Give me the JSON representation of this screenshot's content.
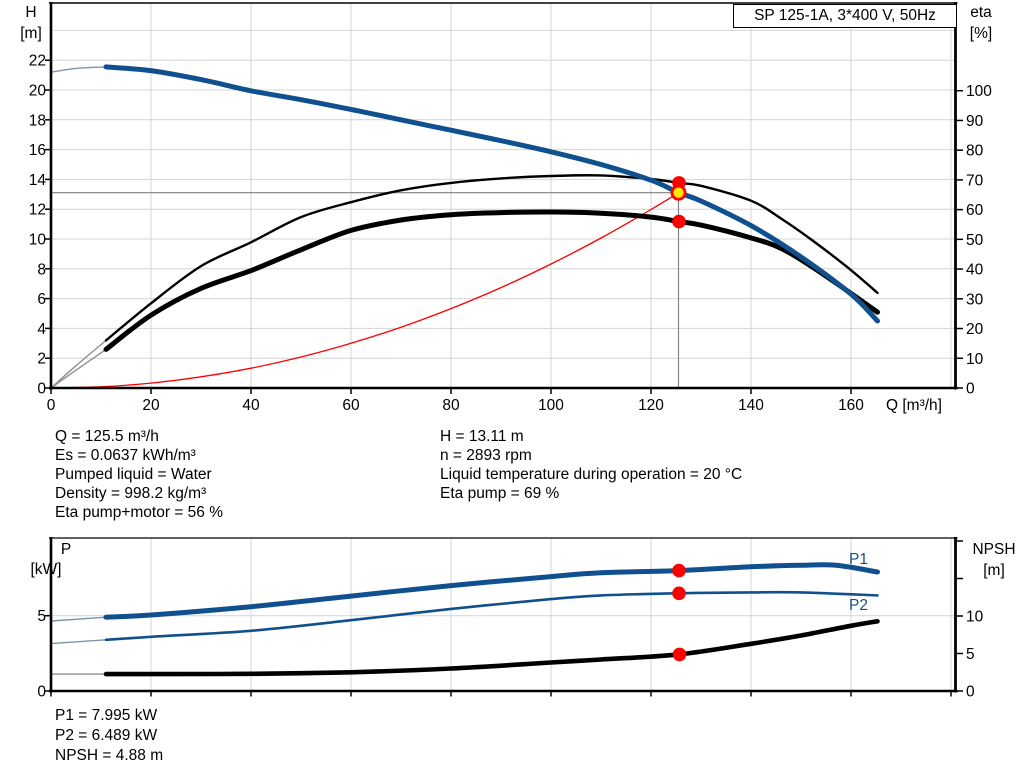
{
  "title_box": {
    "label": "SP 125-1A, 3*400 V, 50Hz"
  },
  "colors": {
    "blue": "#10508f",
    "red": "#fd0000",
    "yellow": "#ffe600",
    "grid": "#d4d4d4",
    "axis": "#000000",
    "drop_line": "#7f7f7f",
    "thin_blue": "#7e94ab",
    "thin_gray": "#8f8f8f"
  },
  "top_chart": {
    "y_left_title_1": "H",
    "y_left_title_2": "[m]",
    "y_right_title_1": "eta",
    "y_right_title_2": "[%]",
    "x_title": "Q [m³/h]",
    "x_ticks": [
      0,
      20,
      40,
      60,
      80,
      100,
      120,
      140,
      160
    ],
    "y_left_ticks": [
      0,
      2,
      4,
      6,
      8,
      10,
      12,
      14,
      16,
      18,
      20,
      22
    ],
    "y_right_ticks": [
      0,
      10,
      20,
      30,
      40,
      50,
      60,
      70,
      80,
      90,
      100
    ]
  },
  "bottom_chart": {
    "y_left_title_1": "P",
    "y_left_title_2": "[kW]",
    "y_right_title_1": "NPSH",
    "y_right_title_2": "[m]",
    "y_left_ticks": [
      0,
      5
    ],
    "y_right_ticks": [
      0,
      5,
      10,
      15,
      20
    ],
    "y_right_labeled_ticks": [
      0,
      5,
      10
    ],
    "p1_label": "P1",
    "p2_label": "P2"
  },
  "annotations": {
    "left": [
      "Q = 125.5 m³/h",
      "Es = 0.0637 kWh/m³",
      "Pumped liquid = Water",
      "Density = 998.2 kg/m³",
      "Eta pump+motor = 56 %"
    ],
    "right": [
      "H = 13.11 m",
      "n = 2893 rpm",
      "Liquid temperature during operation = 20 °C",
      "Eta pump = 69 %"
    ],
    "bottom": [
      "P1 = 7.995 kW",
      "P2 = 6.489 kW",
      "NPSH = 4.88 m"
    ]
  },
  "chart_data": [
    {
      "type": "line",
      "title": "SP 125-1A, 3*400 V, 50Hz",
      "xlabel": "Q [m³/h]",
      "ylabel_left": "H [m]",
      "ylabel_right": "eta [%]",
      "xlim": [
        0,
        180.8
      ],
      "ylim_left": [
        0,
        25.84
      ],
      "ylim_right": [
        0,
        129.5
      ],
      "grid": true,
      "series": [
        {
          "name": "head",
          "axis": "left",
          "color": "blue",
          "width": 5,
          "thin_until": 11,
          "points": [
            [
              0,
              21.2
            ],
            [
              5,
              21.45
            ],
            [
              11,
              21.55
            ],
            [
              20,
              21.3
            ],
            [
              30,
              20.7
            ],
            [
              40,
              19.95
            ],
            [
              50,
              19.35
            ],
            [
              60,
              18.7
            ],
            [
              70,
              18.0
            ],
            [
              80,
              17.3
            ],
            [
              90,
              16.6
            ],
            [
              100,
              15.85
            ],
            [
              110,
              15.0
            ],
            [
              120,
              13.95
            ],
            [
              125.5,
              13.11
            ],
            [
              130,
              12.55
            ],
            [
              140,
              10.9
            ],
            [
              150,
              8.8
            ],
            [
              160,
              6.3
            ],
            [
              165.3,
              4.5
            ]
          ]
        },
        {
          "name": "eta-pump",
          "axis": "right",
          "color": "black",
          "width": 2.4,
          "thin_until": 11,
          "points": [
            [
              0,
              0
            ],
            [
              5,
              7.5
            ],
            [
              11,
              16
            ],
            [
              20,
              28.5
            ],
            [
              30,
              41
            ],
            [
              40,
              49
            ],
            [
              50,
              57.5
            ],
            [
              60,
              62.5
            ],
            [
              70,
              66.5
            ],
            [
              80,
              69
            ],
            [
              90,
              70.5
            ],
            [
              100,
              71.3
            ],
            [
              110,
              71.5
            ],
            [
              120,
              70.3
            ],
            [
              125.5,
              69
            ],
            [
              130,
              68
            ],
            [
              140,
              63
            ],
            [
              146,
              57
            ],
            [
              152,
              50
            ],
            [
              159,
              41
            ],
            [
              165.3,
              32
            ]
          ]
        },
        {
          "name": "eta-pump-motor",
          "axis": "right",
          "color": "black",
          "width": 5,
          "thin_until": 11,
          "points": [
            [
              0,
              0
            ],
            [
              5,
              6
            ],
            [
              11,
              13
            ],
            [
              20,
              24.5
            ],
            [
              30,
              33.5
            ],
            [
              40,
              39.5
            ],
            [
              50,
              46.5
            ],
            [
              60,
              53
            ],
            [
              70,
              56.5
            ],
            [
              80,
              58.3
            ],
            [
              90,
              59
            ],
            [
              100,
              59.2
            ],
            [
              110,
              58.8
            ],
            [
              120,
              57.5
            ],
            [
              125.5,
              56
            ],
            [
              130,
              54.8
            ],
            [
              140,
              50.5
            ],
            [
              146,
              47
            ],
            [
              152,
              41
            ],
            [
              159,
              33
            ],
            [
              165.3,
              25.5
            ]
          ]
        },
        {
          "name": "system-curve",
          "axis": "left",
          "color": "red",
          "width": 1.3,
          "points": [
            [
              0,
              0
            ],
            [
              10,
              0.08
            ],
            [
              20,
              0.33
            ],
            [
              30,
              0.75
            ],
            [
              40,
              1.33
            ],
            [
              50,
              2.08
            ],
            [
              60,
              3.0
            ],
            [
              70,
              4.08
            ],
            [
              80,
              5.33
            ],
            [
              90,
              6.74
            ],
            [
              100,
              8.32
            ],
            [
              110,
              10.07
            ],
            [
              120,
              11.98
            ],
            [
              125.5,
              13.11
            ]
          ]
        }
      ],
      "operating_point": {
        "q": 125.5,
        "head": 13.11,
        "eta_pump": 69,
        "eta_pump_motor": 56
      }
    },
    {
      "type": "line",
      "xlabel": "Q [m³/h]",
      "ylabel_left": "P [kW]",
      "ylabel_right": "NPSH [m]",
      "xlim": [
        0,
        180.8
      ],
      "ylim_left": [
        0,
        10.16
      ],
      "ylim_right": [
        0,
        20.4
      ],
      "grid": true,
      "series": [
        {
          "name": "p2",
          "axis": "left",
          "color": "blue",
          "width": 2.6,
          "thin_until": 11,
          "points": [
            [
              0,
              3.15
            ],
            [
              11,
              3.4
            ],
            [
              20,
              3.6
            ],
            [
              40,
              4.0
            ],
            [
              60,
              4.7
            ],
            [
              80,
              5.45
            ],
            [
              100,
              6.1
            ],
            [
              110,
              6.35
            ],
            [
              125.5,
              6.489
            ],
            [
              140,
              6.55
            ],
            [
              150,
              6.55
            ],
            [
              165.3,
              6.35
            ]
          ]
        },
        {
          "name": "p1",
          "axis": "left",
          "color": "blue",
          "width": 5,
          "thin_until": 11,
          "points": [
            [
              0,
              4.65
            ],
            [
              11,
              4.9
            ],
            [
              20,
              5.05
            ],
            [
              40,
              5.6
            ],
            [
              60,
              6.3
            ],
            [
              80,
              7.0
            ],
            [
              100,
              7.6
            ],
            [
              110,
              7.85
            ],
            [
              125.5,
              7.995
            ],
            [
              140,
              8.25
            ],
            [
              150,
              8.35
            ],
            [
              157,
              8.35
            ],
            [
              165.3,
              7.9
            ]
          ]
        },
        {
          "name": "npsh",
          "axis": "right",
          "color": "black",
          "width": 4.6,
          "thin_until": 11,
          "points": [
            [
              0,
              2.25
            ],
            [
              11,
              2.25
            ],
            [
              20,
              2.25
            ],
            [
              40,
              2.3
            ],
            [
              60,
              2.5
            ],
            [
              80,
              3.0
            ],
            [
              100,
              3.8
            ],
            [
              110,
              4.2
            ],
            [
              125.5,
              4.88
            ],
            [
              140,
              6.3
            ],
            [
              150,
              7.4
            ],
            [
              160,
              8.7
            ],
            [
              165.3,
              9.3
            ]
          ]
        }
      ],
      "operating_point": {
        "q": 125.5,
        "p1": 7.995,
        "p2": 6.489,
        "npsh": 4.88
      }
    }
  ]
}
